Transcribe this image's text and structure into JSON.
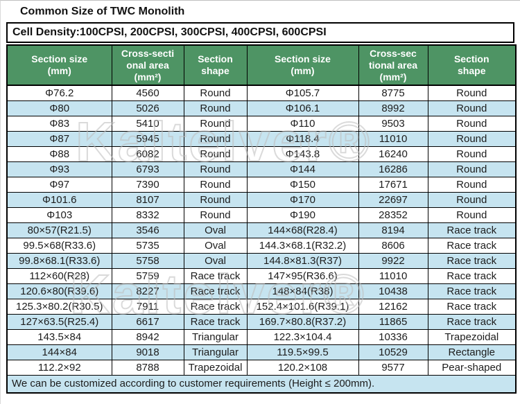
{
  "page": {
    "title": "Common Size of TWC Monolith",
    "cell_density": "Cell Density:100CPSI, 200CPSI, 300CPSI, 400CPSI, 600CPSI",
    "footer_note": "We can be customized according to customer requirements (Height ≤ 200mm).",
    "watermark": "Kaltelver®"
  },
  "colors": {
    "header_bg": "#4e9464",
    "header_text": "#ffffff",
    "row_alt_bg": "#c6e4f0",
    "row_bg": "#ffffff",
    "border": "#000000",
    "watermark": "#bdbdbd"
  },
  "table": {
    "headers": [
      "Section size\n(mm)",
      "Cross-secti\nonal area\n(mm²)",
      "Section\nshape",
      "Section size\n(mm)",
      "Cross-sec\ntional area\n(mm²)",
      "Section\nshape"
    ],
    "rows": [
      [
        "Φ76.2",
        "4560",
        "Round",
        "Φ105.7",
        "8775",
        "Round"
      ],
      [
        "Φ80",
        "5026",
        "Round",
        "Φ106.1",
        "8992",
        "Round"
      ],
      [
        "Φ83",
        "5410",
        "Round",
        "Φ110",
        "9503",
        "Round"
      ],
      [
        "Φ87",
        "5945",
        "Round",
        "Φ118.4",
        "11010",
        "Round"
      ],
      [
        "Φ88",
        "6082",
        "Round",
        "Φ143.8",
        "16240",
        "Round"
      ],
      [
        "Φ93",
        "6793",
        "Round",
        "Φ144",
        "16286",
        "Round"
      ],
      [
        "Φ97",
        "7390",
        "Round",
        "Φ150",
        "17671",
        "Round"
      ],
      [
        "Φ101.6",
        "8107",
        "Round",
        "Φ170",
        "22697",
        "Round"
      ],
      [
        "Φ103",
        "8332",
        "Round",
        "Φ190",
        "28352",
        "Round"
      ],
      [
        "80×57(R21.5)",
        "3546",
        "Oval",
        "144×68(R28.4)",
        "8194",
        "Race track"
      ],
      [
        "99.5×68(R33.6)",
        "5735",
        "Oval",
        "144.3×68.1(R32.2)",
        "8606",
        "Race track"
      ],
      [
        "99.8×68.1(R33.6)",
        "5758",
        "Oval",
        "144.8×81.3(R37)",
        "9922",
        "Race track"
      ],
      [
        "112×60(R28)",
        "5759",
        "Race track",
        "147×95(R36.6)",
        "11010",
        "Race track"
      ],
      [
        "120.6×80(R39.6)",
        "8227",
        "Race track",
        "148×84(R38)",
        "10438",
        "Race track"
      ],
      [
        "125.3×80.2(R30.5)",
        "7911",
        "Race track",
        "152.4×101.6(R39.1)",
        "12162",
        "Race track"
      ],
      [
        "127×63.5(R25.4)",
        "6617",
        "Race track",
        "169.7×80.8(R37.2)",
        "11865",
        "Race track"
      ],
      [
        "143.5×84",
        "8942",
        "Triangular",
        "122.3×104.4",
        "10336",
        "Trapezoidal"
      ],
      [
        "144×84",
        "9018",
        "Triangular",
        "119.5×99.5",
        "10529",
        "Rectangle"
      ],
      [
        "112.2×92",
        "8788",
        "Trapezoidal",
        "120.2×108",
        "9577",
        "Pear-shaped"
      ]
    ]
  }
}
